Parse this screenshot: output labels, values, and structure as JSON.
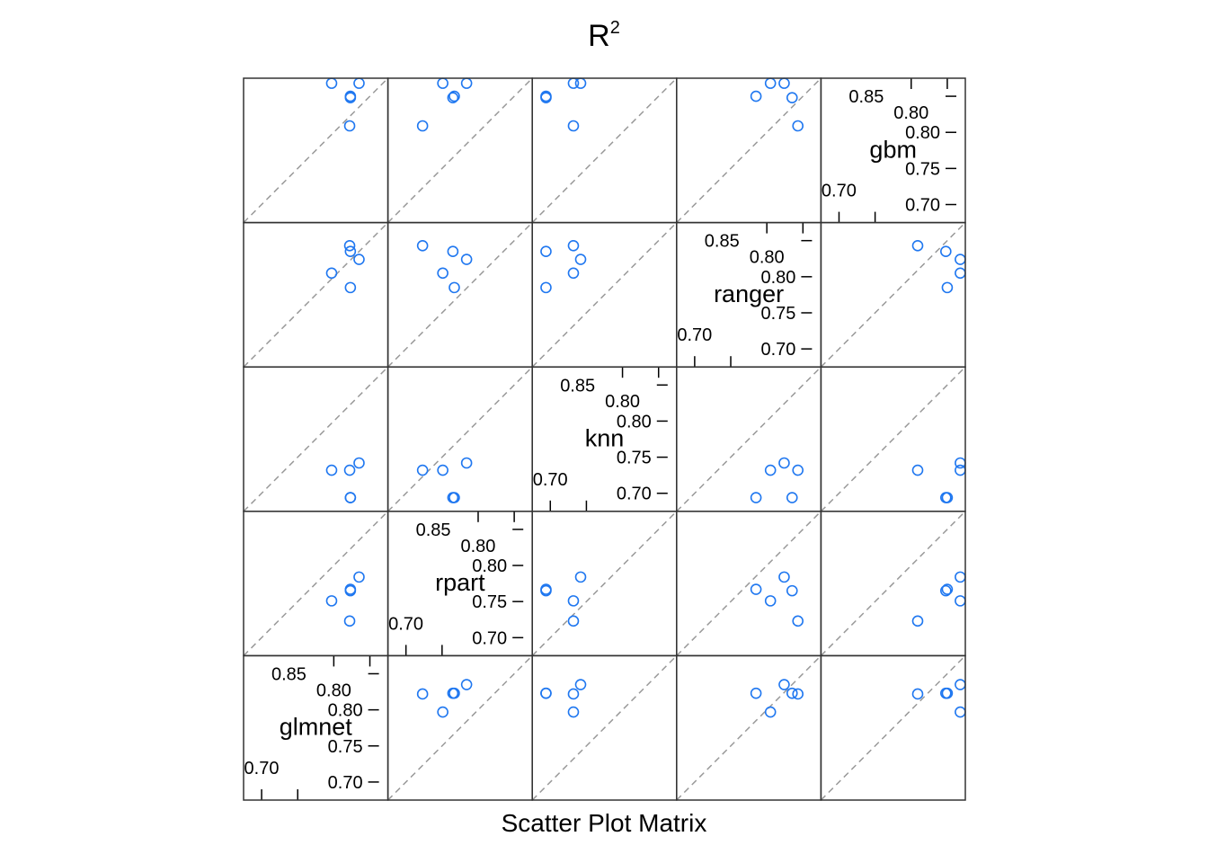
{
  "chart_data": {
    "type": "scatter",
    "subtype": "scatter-plot-matrix",
    "title_main": "R",
    "title_sup": "2",
    "xlabel": "Scatter Plot Matrix",
    "variables": [
      "glmnet",
      "rpart",
      "knn",
      "ranger",
      "gbm"
    ],
    "axis_range": [
      0.675,
      0.875
    ],
    "tick_values": [
      0.7,
      0.75,
      0.8,
      0.85
    ],
    "tick_labels_left": [
      "0.70",
      "0.80"
    ],
    "tick_labels_right": [
      "0.70",
      "0.75",
      "0.80",
      "0.85"
    ],
    "point_color": "#1f77f0",
    "reference_line_color": "#999999",
    "reference_line": "identity, dashed",
    "observations": {
      "glmnet": [
        0.822,
        0.823,
        0.823,
        0.835,
        0.797
      ],
      "rpart": [
        0.723,
        0.765,
        0.767,
        0.784,
        0.751
      ],
      "knn": [
        0.732,
        0.694,
        0.694,
        0.742,
        0.732
      ],
      "ranger": [
        0.843,
        0.835,
        0.785,
        0.824,
        0.805
      ],
      "gbm": [
        0.809,
        0.848,
        0.85,
        0.868,
        0.868
      ]
    }
  }
}
